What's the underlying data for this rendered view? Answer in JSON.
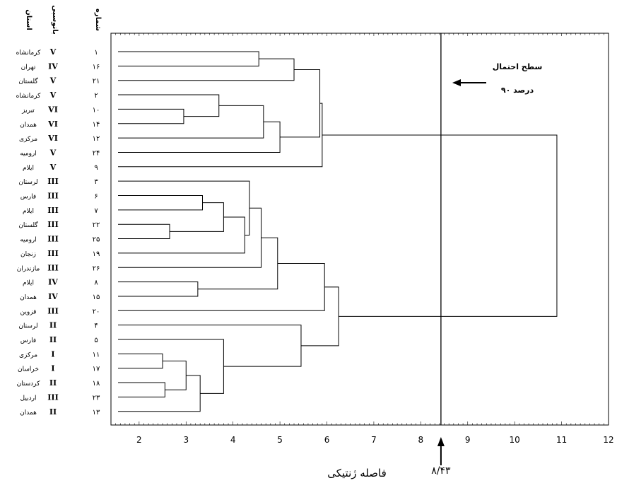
{
  "headers": {
    "province": "استان",
    "group": "بانوسبی",
    "accession": "شماره"
  },
  "rows": [
    {
      "acc": "۱",
      "group": "V",
      "province": "کرمانشاه"
    },
    {
      "acc": "۱۶",
      "group": "IV",
      "province": "تهران"
    },
    {
      "acc": "۲۱",
      "group": "V",
      "province": "گلستان"
    },
    {
      "acc": "۲",
      "group": "V",
      "province": "کرمانشاه"
    },
    {
      "acc": "۱۰",
      "group": "VI",
      "province": "تبریز"
    },
    {
      "acc": "۱۴",
      "group": "VI",
      "province": "همدان"
    },
    {
      "acc": "۱۲",
      "group": "VI",
      "province": "مرکزی"
    },
    {
      "acc": "۲۴",
      "group": "V",
      "province": "ارومیه"
    },
    {
      "acc": "۹",
      "group": "V",
      "province": "ایلام"
    },
    {
      "acc": "۳",
      "group": "III",
      "province": "لرستان"
    },
    {
      "acc": "۶",
      "group": "III",
      "province": "فارس"
    },
    {
      "acc": "۷",
      "group": "III",
      "province": "ایلام"
    },
    {
      "acc": "۲۲",
      "group": "III",
      "province": "گلستان"
    },
    {
      "acc": "۲۵",
      "group": "III",
      "province": "ارومیه"
    },
    {
      "acc": "۱۹",
      "group": "III",
      "province": "زنجان"
    },
    {
      "acc": "۲۶",
      "group": "III",
      "province": "مازندران"
    },
    {
      "acc": "۸",
      "group": "IV",
      "province": "ایلام"
    },
    {
      "acc": "۱۵",
      "group": "IV",
      "province": "همدان"
    },
    {
      "acc": "۲۰",
      "group": "III",
      "province": "قزوین"
    },
    {
      "acc": "۴",
      "group": "II",
      "province": "لرستان"
    },
    {
      "acc": "۵",
      "group": "II",
      "province": "فارس"
    },
    {
      "acc": "۱۱",
      "group": "I",
      "province": "مرکزی"
    },
    {
      "acc": "۱۷",
      "group": "I",
      "province": "خراسان"
    },
    {
      "acc": "۱۸",
      "group": "II",
      "province": "کردستان"
    },
    {
      "acc": "۲۳",
      "group": "III",
      "province": "اردبیل"
    },
    {
      "acc": "۱۳",
      "group": "II",
      "province": "همدان"
    }
  ],
  "merges": [
    {
      "a": 0,
      "b": 1,
      "h": 4.55
    },
    {
      "a": 26,
      "b": 2,
      "h": 5.3
    },
    {
      "a": 4,
      "b": 5,
      "h": 2.95
    },
    {
      "a": 3,
      "b": 28,
      "h": 3.7
    },
    {
      "a": 29,
      "b": 6,
      "h": 4.65
    },
    {
      "a": 30,
      "b": 7,
      "h": 5.0
    },
    {
      "a": 27,
      "b": 31,
      "h": 5.85
    },
    {
      "a": 32,
      "b": 8,
      "h": 5.9
    },
    {
      "a": 10,
      "b": 11,
      "h": 3.35
    },
    {
      "a": 12,
      "b": 13,
      "h": 2.65
    },
    {
      "a": 34,
      "b": 35,
      "h": 3.8
    },
    {
      "a": 36,
      "b": 14,
      "h": 4.25
    },
    {
      "a": 9,
      "b": 37,
      "h": 4.35
    },
    {
      "a": 38,
      "b": 15,
      "h": 4.6
    },
    {
      "a": 16,
      "b": 17,
      "h": 3.25
    },
    {
      "a": 39,
      "b": 40,
      "h": 4.95
    },
    {
      "a": 41,
      "b": 18,
      "h": 5.95
    },
    {
      "a": 21,
      "b": 22,
      "h": 2.5
    },
    {
      "a": 23,
      "b": 24,
      "h": 2.55
    },
    {
      "a": 43,
      "b": 44,
      "h": 3.0
    },
    {
      "a": 45,
      "b": 25,
      "h": 3.3
    },
    {
      "a": 20,
      "b": 46,
      "h": 3.8
    },
    {
      "a": 19,
      "b": 47,
      "h": 5.45
    },
    {
      "a": 42,
      "b": 48,
      "h": 6.25
    },
    {
      "a": 33,
      "b": 49,
      "h": 10.9
    }
  ],
  "x_axis": {
    "min": 1.4,
    "max": 12,
    "ticks": [
      2,
      3,
      4,
      5,
      6,
      7,
      8,
      9,
      10,
      11,
      12
    ],
    "label": "فاصله ژنتیکی"
  },
  "cutoff": {
    "value": 8.43,
    "label": "۸/۴۳"
  },
  "annotation": {
    "line1": "سطح احتمال",
    "line2": "۹۰ درصد"
  }
}
